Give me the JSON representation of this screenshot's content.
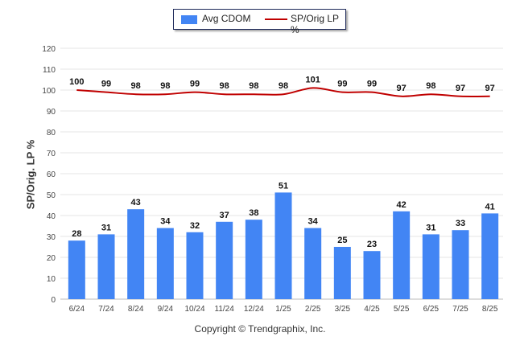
{
  "legend": {
    "bar_label": "Avg CDOM",
    "line_label": "SP/Orig LP %"
  },
  "copyright": "Copyright © Trendgraphix, Inc.",
  "colors": {
    "bar": "#4285f4",
    "line": "#c00000",
    "grid": "#e6e6e6"
  },
  "chart_data": {
    "type": "bar",
    "categories": [
      "6/24",
      "7/24",
      "8/24",
      "9/24",
      "10/24",
      "11/24",
      "12/24",
      "1/25",
      "2/25",
      "3/25",
      "4/25",
      "5/25",
      "6/25",
      "7/25",
      "8/25"
    ],
    "series": [
      {
        "name": "Avg CDOM",
        "type": "bar",
        "values": [
          28,
          31,
          43,
          34,
          32,
          37,
          38,
          51,
          34,
          25,
          23,
          42,
          31,
          33,
          41
        ]
      },
      {
        "name": "SP/Orig LP %",
        "type": "line",
        "values": [
          100,
          99,
          98,
          98,
          99,
          98,
          98,
          98,
          101,
          99,
          99,
          97,
          98,
          97,
          97
        ]
      }
    ],
    "ylabel": "SP/Orig. LP %",
    "ylim": [
      0,
      120
    ],
    "yticks": [
      0,
      10,
      20,
      30,
      40,
      50,
      60,
      70,
      80,
      90,
      100,
      110,
      120
    ],
    "grid": true,
    "legend_position": "top-center"
  }
}
